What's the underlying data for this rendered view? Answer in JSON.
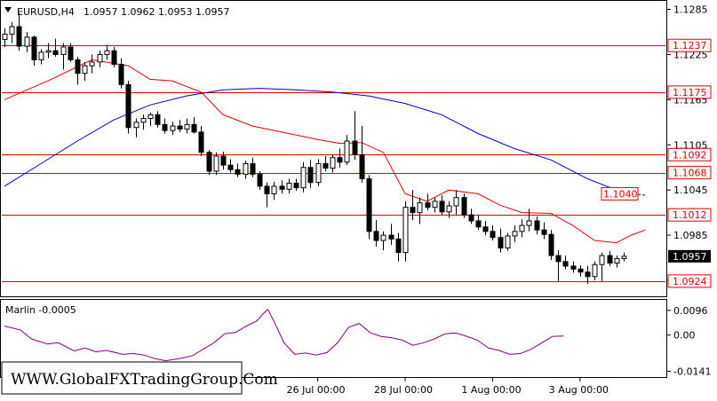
{
  "header": {
    "symbol_label": "EURUSD,H4",
    "ohlc_label": "1.0957 1.0962 1.0953 1.0957",
    "menu_arrow_icon": "triangle-down-icon"
  },
  "indicator": {
    "label": "Marlin -0.0005",
    "y_ticks": [
      "0.0096",
      "0.00",
      "-0.0141"
    ],
    "y_values": [
      0.0096,
      0.0,
      -0.0141
    ],
    "color": "#800080"
  },
  "watermark": "WWW.GlobalFXTradingGroup.Com",
  "colors": {
    "level_line": "#e00000",
    "ma_fast": "#e00000",
    "ma_slow": "#0000c0",
    "candle_bull": "#ffffff",
    "candle_bear": "#000000",
    "price_tag_bg": "#000000"
  },
  "chart_data": {
    "type": "candlestick",
    "symbol": "EURUSD",
    "timeframe": "H4",
    "ylim": [
      1.0905,
      1.1295
    ],
    "y_ticks": [
      "1.1285",
      "1.1225",
      "1.1165",
      "1.1105",
      "1.1045",
      "1.0985",
      "1.0925"
    ],
    "y_tick_values": [
      1.1285,
      1.1225,
      1.1165,
      1.1105,
      1.1045,
      1.0985,
      1.0925
    ],
    "x_ticks": [
      "26 Jul 00:00",
      "28 Jul 00:00",
      "1 Aug 00:00",
      "3 Aug 00:00"
    ],
    "x_tick_bars": [
      43,
      55,
      67,
      79
    ],
    "levels": [
      {
        "label": "1.1237",
        "value": 1.1237
      },
      {
        "label": "1.1175",
        "value": 1.1175
      },
      {
        "label": "1.1092",
        "value": 1.1092
      },
      {
        "label": "1.1068",
        "value": 1.1068
      },
      {
        "label": "1.1012",
        "value": 1.1012
      },
      {
        "label": "1.0924",
        "value": 1.0924
      }
    ],
    "ma_slow_label": "1.1040",
    "ma_slow_value": 1.104,
    "current_price_label": "1.0957",
    "current_price": 1.0957,
    "candles": [
      [
        1.1245,
        1.126,
        1.1235,
        1.1252
      ],
      [
        1.1252,
        1.1268,
        1.124,
        1.1262
      ],
      [
        1.1262,
        1.128,
        1.123,
        1.1236
      ],
      [
        1.1236,
        1.1255,
        1.1228,
        1.1248
      ],
      [
        1.1248,
        1.125,
        1.121,
        1.1218
      ],
      [
        1.1218,
        1.1232,
        1.1212,
        1.1228
      ],
      [
        1.1228,
        1.124,
        1.122,
        1.123
      ],
      [
        1.123,
        1.1246,
        1.1222,
        1.1225
      ],
      [
        1.1225,
        1.124,
        1.1205,
        1.1235
      ],
      [
        1.1235,
        1.124,
        1.1215,
        1.1218
      ],
      [
        1.1218,
        1.1222,
        1.1185,
        1.12
      ],
      [
        1.12,
        1.1215,
        1.119,
        1.121
      ],
      [
        1.121,
        1.1225,
        1.12,
        1.1215
      ],
      [
        1.1215,
        1.123,
        1.1208,
        1.1225
      ],
      [
        1.1225,
        1.1238,
        1.1218,
        1.123
      ],
      [
        1.123,
        1.1235,
        1.1208,
        1.1212
      ],
      [
        1.1212,
        1.122,
        1.118,
        1.1185
      ],
      [
        1.1185,
        1.119,
        1.112,
        1.1128
      ],
      [
        1.1128,
        1.114,
        1.1115,
        1.1135
      ],
      [
        1.1135,
        1.1145,
        1.1125,
        1.114
      ],
      [
        1.114,
        1.1148,
        1.113,
        1.1145
      ],
      [
        1.1145,
        1.115,
        1.1128,
        1.1132
      ],
      [
        1.1132,
        1.114,
        1.112,
        1.1124
      ],
      [
        1.1124,
        1.1136,
        1.1118,
        1.113
      ],
      [
        1.113,
        1.1138,
        1.1122,
        1.1126
      ],
      [
        1.1126,
        1.114,
        1.112,
        1.1132
      ],
      [
        1.1132,
        1.1142,
        1.112,
        1.1122
      ],
      [
        1.1122,
        1.113,
        1.109,
        1.1095
      ],
      [
        1.1095,
        1.1098,
        1.1065,
        1.107
      ],
      [
        1.107,
        1.1095,
        1.1065,
        1.109
      ],
      [
        1.109,
        1.1096,
        1.1072,
        1.1078
      ],
      [
        1.1078,
        1.1086,
        1.1068,
        1.1072
      ],
      [
        1.1072,
        1.108,
        1.1062,
        1.1066
      ],
      [
        1.1066,
        1.1084,
        1.106,
        1.108
      ],
      [
        1.108,
        1.1088,
        1.1062,
        1.1066
      ],
      [
        1.1066,
        1.107,
        1.1045,
        1.105
      ],
      [
        1.105,
        1.1055,
        1.1022,
        1.104
      ],
      [
        1.104,
        1.1056,
        1.1032,
        1.105
      ],
      [
        1.105,
        1.1058,
        1.104,
        1.1046
      ],
      [
        1.1046,
        1.106,
        1.104,
        1.1054
      ],
      [
        1.1054,
        1.106,
        1.1044,
        1.1048
      ],
      [
        1.1048,
        1.1082,
        1.1042,
        1.1075
      ],
      [
        1.1075,
        1.1085,
        1.1048,
        1.1055
      ],
      [
        1.1055,
        1.1086,
        1.105,
        1.108
      ],
      [
        1.108,
        1.109,
        1.107,
        1.1074
      ],
      [
        1.1074,
        1.1092,
        1.1068,
        1.1088
      ],
      [
        1.1088,
        1.11,
        1.1075,
        1.1082
      ],
      [
        1.1082,
        1.1118,
        1.1078,
        1.111
      ],
      [
        1.111,
        1.115,
        1.1085,
        1.1092
      ],
      [
        1.1092,
        1.113,
        1.1055,
        1.106
      ],
      [
        1.106,
        1.1065,
        1.098,
        1.099
      ],
      [
        1.099,
        1.1005,
        1.097,
        1.0978
      ],
      [
        1.0978,
        1.099,
        1.0965,
        1.0985
      ],
      [
        1.0985,
        1.1,
        1.0972,
        1.098
      ],
      [
        1.098,
        1.0988,
        1.095,
        1.0962
      ],
      [
        1.0962,
        1.103,
        1.095,
        1.1022
      ],
      [
        1.1022,
        1.1045,
        1.1005,
        1.1015
      ],
      [
        1.1015,
        1.1035,
        1.1,
        1.1028
      ],
      [
        1.1028,
        1.104,
        1.1018,
        1.1022
      ],
      [
        1.1022,
        1.1035,
        1.1015,
        1.103
      ],
      [
        1.103,
        1.1038,
        1.1012,
        1.1016
      ],
      [
        1.1016,
        1.103,
        1.1008,
        1.1024
      ],
      [
        1.1024,
        1.1045,
        1.1012,
        1.1035
      ],
      [
        1.1035,
        1.104,
        1.1008,
        1.1012
      ],
      [
        1.1012,
        1.102,
        1.1,
        1.1004
      ],
      [
        1.1004,
        1.1012,
        1.0992,
        1.0996
      ],
      [
        1.0996,
        1.1004,
        1.0985,
        1.099
      ],
      [
        1.099,
        1.0998,
        1.0978,
        1.0982
      ],
      [
        1.0982,
        1.0994,
        1.0962,
        1.0968
      ],
      [
        1.0968,
        1.0988,
        1.0964,
        1.0984
      ],
      [
        1.0984,
        1.0998,
        1.0976,
        1.099
      ],
      [
        1.099,
        1.1006,
        1.0982,
        1.0998
      ],
      [
        1.0998,
        1.102,
        1.099,
        1.1004
      ],
      [
        1.1004,
        1.101,
        1.0986,
        1.0992
      ],
      [
        1.0992,
        1.1002,
        1.098,
        1.0986
      ],
      [
        1.0986,
        1.0992,
        1.0952,
        1.0958
      ],
      [
        1.0958,
        1.0965,
        1.0924,
        1.095
      ],
      [
        1.095,
        1.0958,
        1.094,
        1.0944
      ],
      [
        1.0944,
        1.095,
        1.0935,
        1.094
      ],
      [
        1.094,
        1.0945,
        1.093,
        1.0936
      ],
      [
        1.0936,
        1.0944,
        1.092,
        1.093
      ],
      [
        1.093,
        1.095,
        1.0925,
        1.0946
      ],
      [
        1.0946,
        1.0962,
        1.0924,
        1.0958
      ],
      [
        1.0958,
        1.0964,
        1.0944,
        1.0948
      ],
      [
        1.0948,
        1.0958,
        1.0942,
        1.0954
      ],
      [
        1.0954,
        1.0962,
        1.095,
        1.0957
      ]
    ],
    "ma_fast": [
      [
        0,
        1.1165
      ],
      [
        6,
        1.119
      ],
      [
        12,
        1.1218
      ],
      [
        17,
        1.121
      ],
      [
        20,
        1.1192
      ],
      [
        23,
        1.119
      ],
      [
        27,
        1.1175
      ],
      [
        30,
        1.1145
      ],
      [
        34,
        1.113
      ],
      [
        38,
        1.1122
      ],
      [
        43,
        1.1112
      ],
      [
        46,
        1.1107
      ],
      [
        49,
        1.1108
      ],
      [
        52,
        1.1095
      ],
      [
        55,
        1.104
      ],
      [
        58,
        1.103
      ],
      [
        61,
        1.1045
      ],
      [
        65,
        1.104
      ],
      [
        68,
        1.1025
      ],
      [
        71,
        1.1015
      ],
      [
        75,
        1.1014
      ],
      [
        78,
        1.0998
      ],
      [
        81,
        1.0978
      ],
      [
        84,
        1.0975
      ],
      [
        86,
        1.0985
      ],
      [
        88,
        1.0992
      ]
    ],
    "ma_slow": [
      [
        0,
        1.105
      ],
      [
        5,
        1.108
      ],
      [
        10,
        1.111
      ],
      [
        15,
        1.1138
      ],
      [
        20,
        1.1158
      ],
      [
        25,
        1.117
      ],
      [
        30,
        1.1178
      ],
      [
        35,
        1.118
      ],
      [
        40,
        1.1178
      ],
      [
        45,
        1.1175
      ],
      [
        50,
        1.117
      ],
      [
        55,
        1.116
      ],
      [
        60,
        1.1145
      ],
      [
        65,
        1.112
      ],
      [
        70,
        1.11
      ],
      [
        75,
        1.1085
      ],
      [
        80,
        1.106
      ],
      [
        84,
        1.1045
      ],
      [
        86,
        1.104
      ],
      [
        88,
        1.1038
      ]
    ],
    "ma_slow_dashed_from": 84,
    "indicator_series": [
      [
        0,
        0.0035
      ],
      [
        3,
        0.002
      ],
      [
        5,
        -0.0015
      ],
      [
        8,
        -0.0035
      ],
      [
        10,
        -0.003
      ],
      [
        13,
        -0.0062
      ],
      [
        15,
        -0.005
      ],
      [
        17,
        -0.0065
      ],
      [
        19,
        -0.006
      ],
      [
        22,
        -0.0075
      ],
      [
        24,
        -0.0072
      ],
      [
        26,
        -0.0078
      ],
      [
        28,
        -0.0092
      ],
      [
        30,
        -0.01
      ],
      [
        33,
        -0.009
      ],
      [
        35,
        -0.008
      ],
      [
        37,
        -0.0055
      ],
      [
        39,
        -0.003
      ],
      [
        41,
        0.0005
      ],
      [
        43,
        0.001
      ],
      [
        45,
        0.0035
      ],
      [
        47,
        0.0055
      ],
      [
        48,
        0.008
      ],
      [
        49,
        0.01
      ],
      [
        50,
        0.006
      ],
      [
        52,
        -0.003
      ],
      [
        54,
        -0.0075
      ],
      [
        56,
        -0.007
      ],
      [
        58,
        -0.0078
      ],
      [
        60,
        -0.0068
      ],
      [
        62,
        -0.003
      ],
      [
        64,
        0.003
      ],
      [
        66,
        0.0045
      ],
      [
        68,
        0.001
      ],
      [
        70,
        -0.0005
      ],
      [
        72,
        -0.001
      ],
      [
        74,
        -0.002
      ],
      [
        76,
        -0.004
      ],
      [
        78,
        -0.003
      ],
      [
        80,
        -0.0015
      ],
      [
        82,
        0.0005
      ],
      [
        84,
        0.0008
      ],
      [
        86,
        -0.0005
      ],
      [
        88,
        -0.002
      ],
      [
        90,
        -0.005
      ],
      [
        92,
        -0.006
      ],
      [
        94,
        -0.0075
      ],
      [
        96,
        -0.0072
      ],
      [
        98,
        -0.0055
      ],
      [
        100,
        -0.003
      ],
      [
        102,
        -0.0005
      ],
      [
        104,
        -0.0004
      ]
    ]
  }
}
